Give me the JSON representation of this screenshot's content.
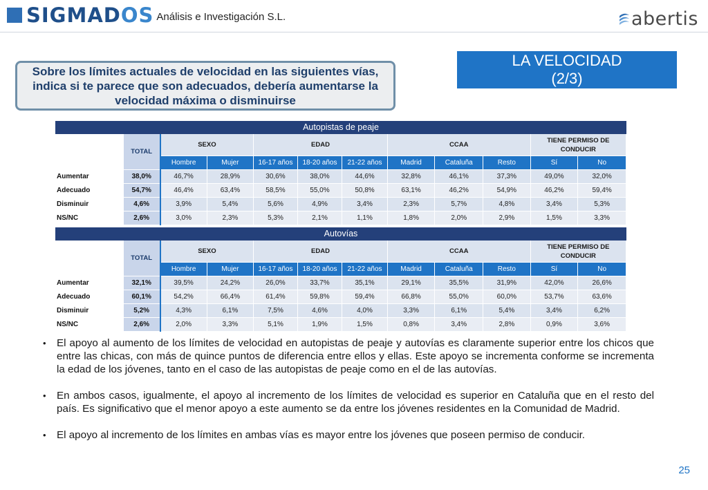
{
  "header": {
    "brand": "SIGMADOS",
    "subtitle": "Análisis e Investigación S.L.",
    "partner_logo": "abertis"
  },
  "question": "Sobre los límites actuales de velocidad en las siguientes vías, indica si te parece que son adecuados, debería aumentarse la velocidad máxima o disminuirse",
  "title": {
    "line1": "LA VELOCIDAD",
    "line2": "(2/3)"
  },
  "column_groups": {
    "total": "TOTAL",
    "sexo": "SEXO",
    "edad": "EDAD",
    "ccaa": "CCAA",
    "permiso": "TIENE PERMISO DE CONDUCIR"
  },
  "columns": [
    "Hombre",
    "Mujer",
    "16-17 años",
    "18-20 años",
    "21-22 años",
    "Madrid",
    "Cataluña",
    "Resto",
    "Sí",
    "No"
  ],
  "tables": [
    {
      "title": "Autopistas de peaje",
      "rows": [
        {
          "label": "Aumentar",
          "values": [
            "38,0%",
            "46,7%",
            "28,9%",
            "30,6%",
            "38,0%",
            "44,6%",
            "32,8%",
            "46,1%",
            "37,3%",
            "49,0%",
            "32,0%"
          ]
        },
        {
          "label": "Adecuado",
          "values": [
            "54,7%",
            "46,4%",
            "63,4%",
            "58,5%",
            "55,0%",
            "50,8%",
            "63,1%",
            "46,2%",
            "54,9%",
            "46,2%",
            "59,4%"
          ]
        },
        {
          "label": "Disminuir",
          "values": [
            "4,6%",
            "3,9%",
            "5,4%",
            "5,6%",
            "4,9%",
            "3,4%",
            "2,3%",
            "5,7%",
            "4,8%",
            "3,4%",
            "5,3%"
          ]
        },
        {
          "label": "NS/NC",
          "values": [
            "2,6%",
            "3,0%",
            "2,3%",
            "5,3%",
            "2,1%",
            "1,1%",
            "1,8%",
            "2,0%",
            "2,9%",
            "1,5%",
            "3,3%"
          ]
        }
      ]
    },
    {
      "title": "Autovías",
      "rows": [
        {
          "label": "Aumentar",
          "values": [
            "32,1%",
            "39,5%",
            "24,2%",
            "26,0%",
            "33,7%",
            "35,1%",
            "29,1%",
            "35,5%",
            "31,9%",
            "42,0%",
            "26,6%"
          ]
        },
        {
          "label": "Adecuado",
          "values": [
            "60,1%",
            "54,2%",
            "66,4%",
            "61,4%",
            "59,8%",
            "59,4%",
            "66,8%",
            "55,0%",
            "60,0%",
            "53,7%",
            "63,6%"
          ]
        },
        {
          "label": "Disminuir",
          "values": [
            "5,2%",
            "4,3%",
            "6,1%",
            "7,5%",
            "4,6%",
            "4,0%",
            "3,3%",
            "6,1%",
            "5,4%",
            "3,4%",
            "6,2%"
          ]
        },
        {
          "label": "NS/NC",
          "values": [
            "2,6%",
            "2,0%",
            "3,3%",
            "5,1%",
            "1,9%",
            "1,5%",
            "0,8%",
            "3,4%",
            "2,8%",
            "0,9%",
            "3,6%"
          ]
        }
      ]
    }
  ],
  "bullets": [
    "El apoyo al aumento de los límites de velocidad en autopistas de peaje y autovías es claramente superior entre los chicos que entre las chicas, con más de quince puntos de diferencia entre ellos y ellas.  Este apoyo se incrementa conforme se incrementa la edad de los jóvenes, tanto en el caso de las autopistas de peaje como en el de las autovías.",
    "En ambos casos, igualmente, el apoyo al incremento de los límites de velocidad es superior en Cataluña que en el resto del país. Es significativo que el menor apoyo a este aumento se da entre los jóvenes residentes en la Comunidad de Madrid.",
    "El apoyo al incremento de los límites en ambas vías es mayor entre los jóvenes que poseen permiso de conducir."
  ],
  "page_number": "25",
  "colors": {
    "accent_blue": "#1f74c6",
    "table_title_navy": "#24407a",
    "question_border": "#6f8fa8"
  }
}
